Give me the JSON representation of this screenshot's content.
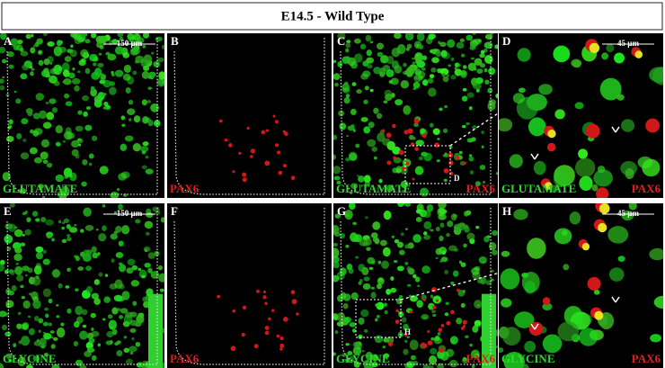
{
  "title": "E14.5 - Wild Type",
  "panels": [
    {
      "letter": "A",
      "scale": "150 µm",
      "labels": [
        {
          "text": "GLUTAMATE",
          "color": "#2ed82e"
        }
      ]
    },
    {
      "letter": "B",
      "labels": [
        {
          "text": "PAX6",
          "color": "#e02020"
        }
      ]
    },
    {
      "letter": "C",
      "inset": "D",
      "labels": [
        {
          "text": "GLUTAMATE",
          "color": "#2ed82e"
        },
        {
          "text": "PAX6",
          "color": "#e02020"
        }
      ]
    },
    {
      "letter": "D",
      "scale": "45 µm",
      "labels": [
        {
          "text": "GLUTAMATE",
          "color": "#2ed82e"
        },
        {
          "text": "PAX6",
          "color": "#e02020"
        }
      ]
    },
    {
      "letter": "E",
      "scale": "150 µm",
      "labels": [
        {
          "text": "GLYCINE",
          "color": "#2ed82e"
        }
      ]
    },
    {
      "letter": "F",
      "labels": [
        {
          "text": "PAX6",
          "color": "#e02020"
        }
      ]
    },
    {
      "letter": "G",
      "inset": "H",
      "labels": [
        {
          "text": "GLYCINE",
          "color": "#2ed82e"
        },
        {
          "text": "PAX6",
          "color": "#e02020"
        }
      ]
    },
    {
      "letter": "H",
      "scale": "45 µm",
      "labels": [
        {
          "text": "GLYCINE",
          "color": "#2ed82e"
        },
        {
          "text": "PAX6",
          "color": "#e02020"
        }
      ]
    }
  ]
}
